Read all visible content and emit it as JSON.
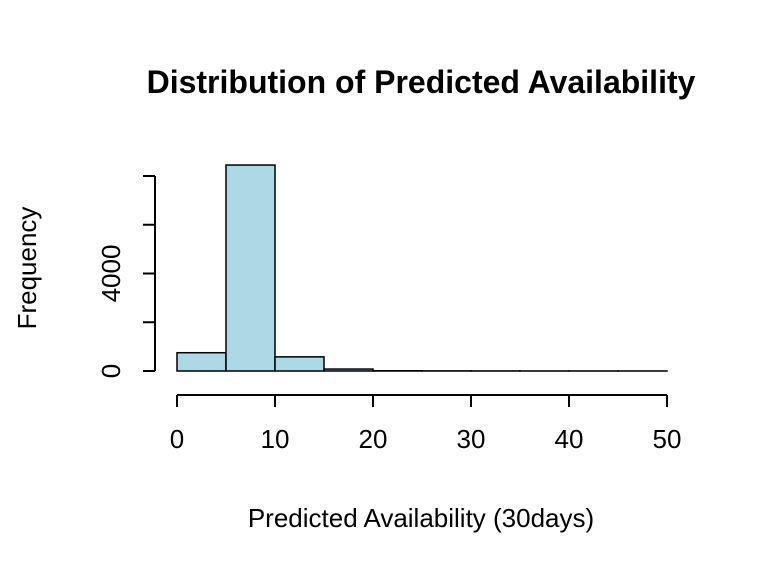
{
  "chart_data": {
    "type": "bar",
    "title": "Distribution of Predicted Availability",
    "xlabel": "Predicted Availability (30days)",
    "ylabel": "Frequency",
    "bins": [
      {
        "start": 0,
        "end": 5,
        "count": 750
      },
      {
        "start": 5,
        "end": 10,
        "count": 8450
      },
      {
        "start": 10,
        "end": 15,
        "count": 580
      },
      {
        "start": 15,
        "end": 20,
        "count": 80
      },
      {
        "start": 20,
        "end": 25,
        "count": 10
      },
      {
        "start": 25,
        "end": 30,
        "count": 5
      },
      {
        "start": 30,
        "end": 35,
        "count": 3
      },
      {
        "start": 35,
        "end": 40,
        "count": 2
      },
      {
        "start": 40,
        "end": 45,
        "count": 2
      },
      {
        "start": 45,
        "end": 50,
        "count": 1
      }
    ],
    "xlim": [
      0,
      50
    ],
    "ylim": [
      0,
      8000
    ],
    "x_ticks": [
      0,
      10,
      20,
      30,
      40,
      50
    ],
    "y_ticks": [
      0,
      2000,
      4000,
      6000,
      8000
    ],
    "y_tick_labels": [
      "0",
      "",
      "4000",
      "",
      ""
    ],
    "bar_color": "#add8e6",
    "grid": false
  }
}
